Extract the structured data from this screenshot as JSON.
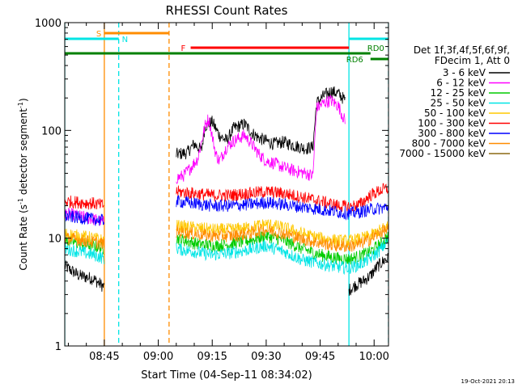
{
  "chart_data": {
    "type": "line",
    "title": "RHESSI Count Rates",
    "xlabel": "Start Time (04-Sep-11 08:34:02)",
    "ylabel_main": "Count Rate (s",
    "ylabel_sup1": "-1",
    "ylabel_mid": " detector segment",
    "ylabel_sup2": "-1",
    "ylabel_end": ")",
    "x_scale": "time",
    "x_start": "08:34:02",
    "xlim": [
      "08:34",
      "10:04"
    ],
    "y_scale": "log",
    "ylim": [
      1,
      1000
    ],
    "x_ticks": [
      "08:45",
      "09:00",
      "09:15",
      "09:30",
      "09:45",
      "10:00"
    ],
    "y_ticks": [
      {
        "value": 1,
        "label": "1"
      },
      {
        "value": 10,
        "label": "10"
      },
      {
        "value": 100,
        "label": "100"
      },
      {
        "value": 1000,
        "label": "1000"
      }
    ],
    "legend": {
      "placement": "right",
      "header": [
        "Det 1f,3f,4f,5f,6f,9f,",
        "FDecim 1, Att 0"
      ],
      "entries": [
        {
          "label": "3 - 6 keV",
          "color": "#000000"
        },
        {
          "label": "6 - 12 keV",
          "color": "#ff00ff"
        },
        {
          "label": "12 - 25 keV",
          "color": "#00cc00"
        },
        {
          "label": "25 - 50 keV",
          "color": "#00e5e5"
        },
        {
          "label": "50 - 100 keV",
          "color": "#ffc800"
        },
        {
          "label": "100 - 300 keV",
          "color": "#ff0000"
        },
        {
          "label": "300 - 800 keV",
          "color": "#0000ff"
        },
        {
          "label": "800 - 7000 keV",
          "color": "#ff8c00"
        },
        {
          "label": "7000 - 15000 keV",
          "color": "#8b6914"
        }
      ]
    },
    "series": [
      {
        "name": "3 - 6 keV",
        "color": "#000000",
        "segments": [
          {
            "x": [
              "08:34",
              "08:38",
              "08:42",
              "08:45"
            ],
            "y": [
              5.5,
              4.5,
              4.2,
              3.5
            ]
          },
          {
            "x": [
              "09:05",
              "09:08",
              "09:10",
              "09:12",
              "09:13",
              "09:15",
              "09:17",
              "09:19",
              "09:21",
              "09:24",
              "09:26",
              "09:28",
              "09:30",
              "09:32",
              "09:35",
              "09:38",
              "09:41",
              "09:43",
              "09:44",
              "09:46",
              "09:48",
              "09:50",
              "09:52"
            ],
            "y": [
              60,
              62,
              75,
              65,
              110,
              120,
              90,
              80,
              105,
              115,
              95,
              85,
              80,
              75,
              78,
              72,
              68,
              70,
              180,
              210,
              230,
              220,
              190
            ]
          },
          {
            "x": [
              "09:53",
              "09:55",
              "09:57",
              "09:59",
              "10:01",
              "10:03",
              "10:04"
            ],
            "y": [
              3.3,
              3.7,
              4.0,
              4.5,
              5.5,
              6.3,
              6.5
            ]
          }
        ]
      },
      {
        "name": "6 - 12 keV",
        "color": "#ff00ff",
        "segments": [
          {
            "x": [
              "08:34",
              "08:38",
              "08:42",
              "08:45"
            ],
            "y": [
              17,
              16,
              15,
              14
            ]
          },
          {
            "x": [
              "09:05",
              "09:07",
              "09:09",
              "09:11",
              "09:13",
              "09:14",
              "09:16",
              "09:17",
              "09:19",
              "09:21",
              "09:24",
              "09:26",
              "09:28",
              "09:30",
              "09:32",
              "09:35",
              "09:38",
              "09:41",
              "09:43",
              "09:44",
              "09:46",
              "09:48",
              "09:50",
              "09:52"
            ],
            "y": [
              36,
              38,
              45,
              55,
              110,
              130,
              60,
              52,
              70,
              80,
              90,
              75,
              60,
              52,
              50,
              45,
              42,
              40,
              38,
              160,
              180,
              190,
              170,
              120
            ]
          }
        ]
      },
      {
        "name": "12 - 25 keV",
        "color": "#00cc00",
        "segments": [
          {
            "x": [
              "08:34",
              "08:38",
              "08:42",
              "08:45"
            ],
            "y": [
              9.5,
              9,
              8.5,
              8
            ]
          },
          {
            "x": [
              "09:05",
              "09:10",
              "09:15",
              "09:20",
              "09:25",
              "09:30",
              "09:35",
              "09:40",
              "09:45",
              "09:50",
              "09:53",
              "09:56",
              "09:59",
              "10:02",
              "10:04"
            ],
            "y": [
              10,
              9,
              8.5,
              8.8,
              9.5,
              10.5,
              9.5,
              8,
              7,
              6.5,
              6.4,
              6.8,
              7.5,
              9,
              10.5
            ]
          }
        ]
      },
      {
        "name": "25 - 50 keV",
        "color": "#00e5e5",
        "segments": [
          {
            "x": [
              "08:34",
              "08:38",
              "08:42",
              "08:45"
            ],
            "y": [
              8,
              7.5,
              7,
              6.5
            ]
          },
          {
            "x": [
              "09:05",
              "09:10",
              "09:15",
              "09:20",
              "09:25",
              "09:30",
              "09:35",
              "09:40",
              "09:45",
              "09:50",
              "09:53",
              "09:56",
              "09:59",
              "10:02",
              "10:04"
            ],
            "y": [
              8,
              7.5,
              7,
              7.3,
              7.8,
              8.5,
              7.5,
              6.3,
              5.8,
              5.4,
              5.3,
              5.7,
              6.5,
              8,
              9.5
            ]
          }
        ]
      },
      {
        "name": "50 - 100 keV",
        "color": "#ffc800",
        "segments": [
          {
            "x": [
              "08:34",
              "08:38",
              "08:42",
              "08:45"
            ],
            "y": [
              11,
              10.5,
              10,
              9.5
            ]
          },
          {
            "x": [
              "09:05",
              "09:10",
              "09:15",
              "09:20",
              "09:25",
              "09:30",
              "09:35",
              "09:40",
              "09:45",
              "09:50",
              "09:53",
              "09:56",
              "09:59",
              "10:02",
              "10:04"
            ],
            "y": [
              13,
              12.5,
              12,
              12,
              12.5,
              13.5,
              12.5,
              11,
              10,
              9.5,
              9.4,
              9.8,
              10.5,
              12,
              13
            ]
          }
        ]
      },
      {
        "name": "100 - 300 keV",
        "color": "#ff0000",
        "segments": [
          {
            "x": [
              "08:34",
              "08:38",
              "08:42",
              "08:45"
            ],
            "y": [
              22,
              21.5,
              21,
              20
            ]
          },
          {
            "x": [
              "09:05",
              "09:10",
              "09:15",
              "09:20",
              "09:25",
              "09:30",
              "09:35",
              "09:40",
              "09:45",
              "09:50",
              "09:53",
              "09:56",
              "09:59",
              "10:02",
              "10:04"
            ],
            "y": [
              27,
              26,
              25,
              25,
              26,
              27,
              26,
              24,
              22,
              20,
              19.5,
              20.5,
              25,
              28,
              29
            ]
          }
        ]
      },
      {
        "name": "300 - 800 keV",
        "color": "#0000ff",
        "segments": [
          {
            "x": [
              "08:34",
              "08:38",
              "08:42",
              "08:45"
            ],
            "y": [
              16,
              15.5,
              15,
              14.5
            ]
          },
          {
            "x": [
              "09:05",
              "09:10",
              "09:15",
              "09:20",
              "09:25",
              "09:30",
              "09:35",
              "09:40",
              "09:45",
              "09:50",
              "09:53",
              "09:56",
              "09:59",
              "10:02",
              "10:04"
            ],
            "y": [
              22,
              21,
              20,
              20,
              20.5,
              21.5,
              20.5,
              19.5,
              18.5,
              17.5,
              17,
              17.5,
              18.5,
              19,
              19.5
            ]
          }
        ]
      },
      {
        "name": "800 - 7000 keV",
        "color": "#ff8c00",
        "segments": [
          {
            "x": [
              "08:34",
              "08:38",
              "08:42",
              "08:45"
            ],
            "y": [
              10,
              9.6,
              9.2,
              8.8
            ]
          },
          {
            "x": [
              "09:05",
              "09:10",
              "09:15",
              "09:20",
              "09:25",
              "09:30",
              "09:35",
              "09:40",
              "09:45",
              "09:50",
              "09:53",
              "09:56",
              "09:59",
              "10:02",
              "10:04"
            ],
            "y": [
              11.5,
              11,
              10.5,
              10.5,
              11,
              12,
              11,
              9.8,
              9,
              8.5,
              8.4,
              8.8,
              9.8,
              11.5,
              12
            ]
          }
        ]
      }
    ],
    "flag_bars": [
      {
        "label": "S",
        "color": "#ff8c00",
        "x": [
          "08:45",
          "09:03"
        ],
        "level": "top"
      },
      {
        "label": "N",
        "color": "#00e5e5",
        "x": [
          "08:34",
          "08:49"
        ],
        "level": "second"
      },
      {
        "label": "N",
        "color": "#00e5e5",
        "x": [
          "09:53",
          "10:04"
        ],
        "level": "second"
      },
      {
        "label": "F",
        "color": "#ff0000",
        "x": [
          "09:09",
          "09:53"
        ],
        "level": "third"
      },
      {
        "label": "RD0",
        "color": "#008000",
        "x": [
          "08:34",
          "09:59"
        ],
        "level": "fourth"
      },
      {
        "label": "RD6",
        "color": "#008000",
        "x": [
          "09:59",
          "10:04"
        ],
        "level": "fifth"
      }
    ],
    "vertical_markers": [
      {
        "x": "08:34",
        "color": "#00e5e5",
        "style": "solid"
      },
      {
        "x": "08:45",
        "color": "#ff8c00",
        "style": "solid"
      },
      {
        "x": "08:49",
        "color": "#00e5e5",
        "style": "dashed"
      },
      {
        "x": "09:03",
        "color": "#ff8c00",
        "style": "dashed"
      },
      {
        "x": "09:53",
        "color": "#00e5e5",
        "style": "solid"
      },
      {
        "x": "10:04",
        "color": "#00e5e5",
        "style": "dashed"
      }
    ],
    "footer_timestamp": "19-Oct-2021 20:13"
  }
}
